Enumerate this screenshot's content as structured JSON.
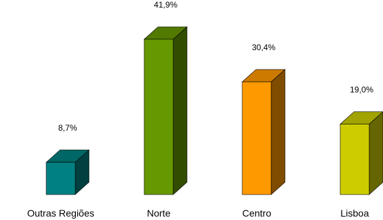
{
  "chart_data": {
    "type": "bar",
    "title": "",
    "xlabel": "",
    "ylabel": "",
    "categories": [
      "Outras Regiões",
      "Norte",
      "Centro",
      "Lisboa"
    ],
    "values": [
      8.7,
      41.9,
      30.4,
      19.0
    ],
    "value_labels": [
      "8,7%",
      "41,9%",
      "30,4%",
      "19,0%"
    ],
    "ylim": [
      0,
      41.9
    ],
    "grid": false,
    "legend": "none",
    "style": "3d-column",
    "colors": [
      {
        "front": "#008080",
        "side": "#004040",
        "top": "#006666"
      },
      {
        "front": "#669900",
        "side": "#334d00",
        "top": "#527a00"
      },
      {
        "front": "#ff9900",
        "side": "#804d00",
        "top": "#cc7a00"
      },
      {
        "front": "#cccc00",
        "side": "#666600",
        "top": "#a3a300"
      }
    ]
  }
}
